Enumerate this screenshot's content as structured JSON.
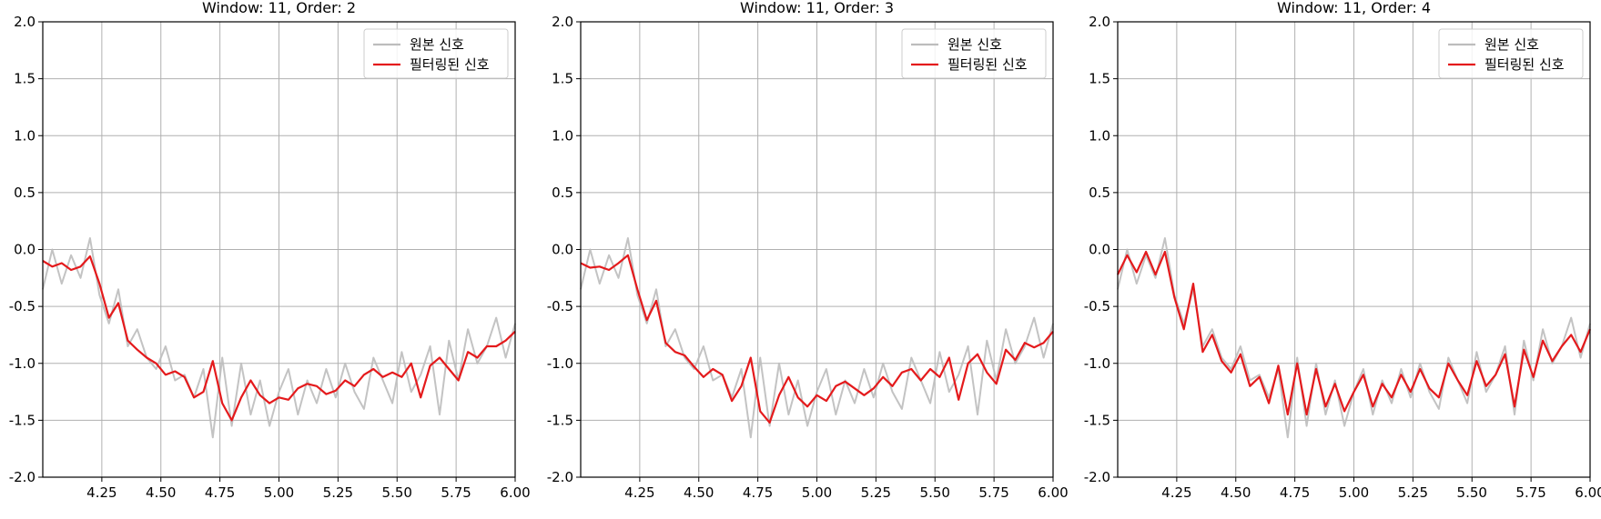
{
  "chart_data": [
    {
      "type": "line",
      "title": "Window: 11, Order: 2",
      "xlabel": "",
      "ylabel": "",
      "xlim": [
        4.0,
        6.0
      ],
      "ylim": [
        -2.0,
        2.0
      ],
      "xticks": [
        4.25,
        4.5,
        4.75,
        5.0,
        5.25,
        5.5,
        5.75,
        6.0
      ],
      "xtick_labels": [
        "4.25",
        "4.50",
        "4.75",
        "5.00",
        "5.25",
        "5.50",
        "5.75",
        "6.00"
      ],
      "yticks": [
        -2.0,
        -1.5,
        -1.0,
        -0.5,
        0.0,
        0.5,
        1.0,
        1.5,
        2.0
      ],
      "ytick_labels": [
        "-2.0",
        "-1.5",
        "-1.0",
        "-0.5",
        "0.0",
        "0.5",
        "1.0",
        "1.5",
        "2.0"
      ],
      "grid": true,
      "legend": "top-right",
      "series": [
        {
          "name": "원본 신호",
          "color": "#bdbdbd",
          "x": [
            4.0,
            4.04,
            4.08,
            4.12,
            4.16,
            4.2,
            4.24,
            4.28,
            4.32,
            4.36,
            4.4,
            4.44,
            4.48,
            4.52,
            4.56,
            4.6,
            4.64,
            4.68,
            4.72,
            4.76,
            4.8,
            4.84,
            4.88,
            4.92,
            4.96,
            5.0,
            5.04,
            5.08,
            5.12,
            5.16,
            5.2,
            5.24,
            5.28,
            5.32,
            5.36,
            5.4,
            5.44,
            5.48,
            5.52,
            5.56,
            5.6,
            5.64,
            5.68,
            5.72,
            5.76,
            5.8,
            5.84,
            5.88,
            5.92,
            5.96,
            6.0
          ],
          "y": [
            -0.35,
            0.0,
            -0.3,
            -0.05,
            -0.25,
            0.1,
            -0.4,
            -0.65,
            -0.35,
            -0.85,
            -0.7,
            -0.95,
            -1.05,
            -0.85,
            -1.15,
            -1.1,
            -1.3,
            -1.05,
            -1.65,
            -0.95,
            -1.55,
            -1.0,
            -1.45,
            -1.15,
            -1.55,
            -1.25,
            -1.05,
            -1.45,
            -1.15,
            -1.35,
            -1.05,
            -1.3,
            -1.0,
            -1.25,
            -1.4,
            -0.95,
            -1.15,
            -1.35,
            -0.9,
            -1.25,
            -1.1,
            -0.85,
            -1.45,
            -0.8,
            -1.15,
            -0.7,
            -1.0,
            -0.85,
            -0.6,
            -0.95,
            -0.65
          ]
        },
        {
          "name": "필터링된 신호",
          "color": "#e41a1c",
          "x": [
            4.0,
            4.04,
            4.08,
            4.12,
            4.16,
            4.2,
            4.24,
            4.28,
            4.32,
            4.36,
            4.4,
            4.44,
            4.48,
            4.52,
            4.56,
            4.6,
            4.64,
            4.68,
            4.72,
            4.76,
            4.8,
            4.84,
            4.88,
            4.92,
            4.96,
            5.0,
            5.04,
            5.08,
            5.12,
            5.16,
            5.2,
            5.24,
            5.28,
            5.32,
            5.36,
            5.4,
            5.44,
            5.48,
            5.52,
            5.56,
            5.6,
            5.64,
            5.68,
            5.72,
            5.76,
            5.8,
            5.84,
            5.88,
            5.92,
            5.96,
            6.0
          ],
          "y": [
            -0.1,
            -0.15,
            -0.12,
            -0.18,
            -0.15,
            -0.06,
            -0.3,
            -0.6,
            -0.47,
            -0.8,
            -0.88,
            -0.95,
            -1.0,
            -1.1,
            -1.07,
            -1.12,
            -1.3,
            -1.25,
            -0.98,
            -1.35,
            -1.5,
            -1.3,
            -1.15,
            -1.28,
            -1.35,
            -1.3,
            -1.32,
            -1.22,
            -1.18,
            -1.2,
            -1.27,
            -1.24,
            -1.15,
            -1.2,
            -1.1,
            -1.05,
            -1.12,
            -1.08,
            -1.12,
            -1.0,
            -1.3,
            -1.02,
            -0.95,
            -1.05,
            -1.15,
            -0.9,
            -0.95,
            -0.85,
            -0.85,
            -0.8,
            -0.72
          ]
        }
      ]
    },
    {
      "type": "line",
      "title": "Window: 11, Order: 3",
      "xlabel": "",
      "ylabel": "",
      "xlim": [
        4.0,
        6.0
      ],
      "ylim": [
        -2.0,
        2.0
      ],
      "xticks": [
        4.25,
        4.5,
        4.75,
        5.0,
        5.25,
        5.5,
        5.75,
        6.0
      ],
      "xtick_labels": [
        "4.25",
        "4.50",
        "4.75",
        "5.00",
        "5.25",
        "5.50",
        "5.75",
        "6.00"
      ],
      "yticks": [
        -2.0,
        -1.5,
        -1.0,
        -0.5,
        0.0,
        0.5,
        1.0,
        1.5,
        2.0
      ],
      "ytick_labels": [
        "-2.0",
        "-1.5",
        "-1.0",
        "-0.5",
        "0.0",
        "0.5",
        "1.0",
        "1.5",
        "2.0"
      ],
      "grid": true,
      "legend": "top-right",
      "series": [
        {
          "name": "원본 신호",
          "color": "#bdbdbd",
          "x": [
            4.0,
            4.04,
            4.08,
            4.12,
            4.16,
            4.2,
            4.24,
            4.28,
            4.32,
            4.36,
            4.4,
            4.44,
            4.48,
            4.52,
            4.56,
            4.6,
            4.64,
            4.68,
            4.72,
            4.76,
            4.8,
            4.84,
            4.88,
            4.92,
            4.96,
            5.0,
            5.04,
            5.08,
            5.12,
            5.16,
            5.2,
            5.24,
            5.28,
            5.32,
            5.36,
            5.4,
            5.44,
            5.48,
            5.52,
            5.56,
            5.6,
            5.64,
            5.68,
            5.72,
            5.76,
            5.8,
            5.84,
            5.88,
            5.92,
            5.96,
            6.0
          ],
          "y": [
            -0.35,
            0.0,
            -0.3,
            -0.05,
            -0.25,
            0.1,
            -0.4,
            -0.65,
            -0.35,
            -0.85,
            -0.7,
            -0.95,
            -1.05,
            -0.85,
            -1.15,
            -1.1,
            -1.3,
            -1.05,
            -1.65,
            -0.95,
            -1.55,
            -1.0,
            -1.45,
            -1.15,
            -1.55,
            -1.25,
            -1.05,
            -1.45,
            -1.15,
            -1.35,
            -1.05,
            -1.3,
            -1.0,
            -1.25,
            -1.4,
            -0.95,
            -1.15,
            -1.35,
            -0.9,
            -1.25,
            -1.1,
            -0.85,
            -1.45,
            -0.8,
            -1.15,
            -0.7,
            -1.0,
            -0.85,
            -0.6,
            -0.95,
            -0.65
          ]
        },
        {
          "name": "필터링된 신호",
          "color": "#e41a1c",
          "x": [
            4.0,
            4.04,
            4.08,
            4.12,
            4.16,
            4.2,
            4.24,
            4.28,
            4.32,
            4.36,
            4.4,
            4.44,
            4.48,
            4.52,
            4.56,
            4.6,
            4.64,
            4.68,
            4.72,
            4.76,
            4.8,
            4.84,
            4.88,
            4.92,
            4.96,
            5.0,
            5.04,
            5.08,
            5.12,
            5.16,
            5.2,
            5.24,
            5.28,
            5.32,
            5.36,
            5.4,
            5.44,
            5.48,
            5.52,
            5.56,
            5.6,
            5.64,
            5.68,
            5.72,
            5.76,
            5.8,
            5.84,
            5.88,
            5.92,
            5.96,
            6.0
          ],
          "y": [
            -0.12,
            -0.16,
            -0.15,
            -0.18,
            -0.12,
            -0.05,
            -0.35,
            -0.62,
            -0.45,
            -0.82,
            -0.9,
            -0.93,
            -1.03,
            -1.12,
            -1.05,
            -1.1,
            -1.33,
            -1.2,
            -0.95,
            -1.42,
            -1.52,
            -1.28,
            -1.12,
            -1.3,
            -1.38,
            -1.28,
            -1.33,
            -1.2,
            -1.16,
            -1.22,
            -1.28,
            -1.22,
            -1.12,
            -1.2,
            -1.08,
            -1.05,
            -1.15,
            -1.05,
            -1.12,
            -0.95,
            -1.32,
            -1.0,
            -0.92,
            -1.08,
            -1.18,
            -0.88,
            -0.97,
            -0.82,
            -0.86,
            -0.82,
            -0.72
          ]
        }
      ]
    },
    {
      "type": "line",
      "title": "Window: 11, Order: 4",
      "xlabel": "",
      "ylabel": "",
      "xlim": [
        4.0,
        6.0
      ],
      "ylim": [
        -2.0,
        2.0
      ],
      "xticks": [
        4.25,
        4.5,
        4.75,
        5.0,
        5.25,
        5.5,
        5.75,
        6.0
      ],
      "xtick_labels": [
        "4.25",
        "4.50",
        "4.75",
        "5.00",
        "5.25",
        "5.50",
        "5.75",
        "6.00"
      ],
      "yticks": [
        -2.0,
        -1.5,
        -1.0,
        -0.5,
        0.0,
        0.5,
        1.0,
        1.5,
        2.0
      ],
      "ytick_labels": [
        "-2.0",
        "-1.5",
        "-1.0",
        "-0.5",
        "0.0",
        "0.5",
        "1.0",
        "1.5",
        "2.0"
      ],
      "grid": true,
      "legend": "top-right",
      "series": [
        {
          "name": "원본 신호",
          "color": "#bdbdbd",
          "x": [
            4.0,
            4.04,
            4.08,
            4.12,
            4.16,
            4.2,
            4.24,
            4.28,
            4.32,
            4.36,
            4.4,
            4.44,
            4.48,
            4.52,
            4.56,
            4.6,
            4.64,
            4.68,
            4.72,
            4.76,
            4.8,
            4.84,
            4.88,
            4.92,
            4.96,
            5.0,
            5.04,
            5.08,
            5.12,
            5.16,
            5.2,
            5.24,
            5.28,
            5.32,
            5.36,
            5.4,
            5.44,
            5.48,
            5.52,
            5.56,
            5.6,
            5.64,
            5.68,
            5.72,
            5.76,
            5.8,
            5.84,
            5.88,
            5.92,
            5.96,
            6.0
          ],
          "y": [
            -0.35,
            0.0,
            -0.3,
            -0.05,
            -0.25,
            0.1,
            -0.4,
            -0.65,
            -0.35,
            -0.85,
            -0.7,
            -0.95,
            -1.05,
            -0.85,
            -1.15,
            -1.1,
            -1.3,
            -1.05,
            -1.65,
            -0.95,
            -1.55,
            -1.0,
            -1.45,
            -1.15,
            -1.55,
            -1.25,
            -1.05,
            -1.45,
            -1.15,
            -1.35,
            -1.05,
            -1.3,
            -1.0,
            -1.25,
            -1.4,
            -0.95,
            -1.15,
            -1.35,
            -0.9,
            -1.25,
            -1.1,
            -0.85,
            -1.45,
            -0.8,
            -1.15,
            -0.7,
            -1.0,
            -0.85,
            -0.6,
            -0.95,
            -0.65
          ]
        },
        {
          "name": "필터링된 신호",
          "color": "#e41a1c",
          "x": [
            4.0,
            4.04,
            4.08,
            4.12,
            4.16,
            4.2,
            4.24,
            4.28,
            4.32,
            4.36,
            4.4,
            4.44,
            4.48,
            4.52,
            4.56,
            4.6,
            4.64,
            4.68,
            4.72,
            4.76,
            4.8,
            4.84,
            4.88,
            4.92,
            4.96,
            5.0,
            5.04,
            5.08,
            5.12,
            5.16,
            5.2,
            5.24,
            5.28,
            5.32,
            5.36,
            5.4,
            5.44,
            5.48,
            5.52,
            5.56,
            5.6,
            5.64,
            5.68,
            5.72,
            5.76,
            5.8,
            5.84,
            5.88,
            5.92,
            5.96,
            6.0
          ],
          "y": [
            -0.22,
            -0.05,
            -0.2,
            -0.02,
            -0.22,
            -0.02,
            -0.42,
            -0.7,
            -0.3,
            -0.9,
            -0.75,
            -0.98,
            -1.08,
            -0.92,
            -1.2,
            -1.12,
            -1.35,
            -1.02,
            -1.45,
            -1.0,
            -1.45,
            -1.05,
            -1.38,
            -1.18,
            -1.42,
            -1.25,
            -1.1,
            -1.38,
            -1.18,
            -1.3,
            -1.1,
            -1.25,
            -1.05,
            -1.22,
            -1.3,
            -1.0,
            -1.15,
            -1.28,
            -0.98,
            -1.2,
            -1.1,
            -0.92,
            -1.38,
            -0.88,
            -1.12,
            -0.8,
            -0.98,
            -0.85,
            -0.75,
            -0.9,
            -0.7
          ]
        }
      ]
    }
  ]
}
